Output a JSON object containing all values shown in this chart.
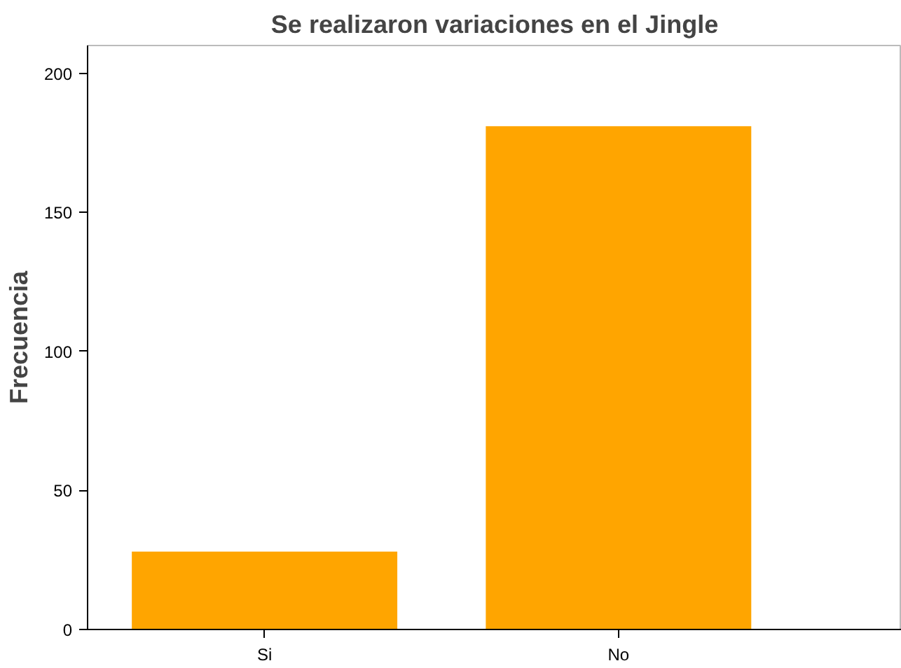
{
  "chart_data": {
    "type": "bar",
    "title": "Se realizaron variaciones en el Jingle",
    "ylabel": "Frecuencia",
    "categories": [
      "Si",
      "No"
    ],
    "values": [
      28,
      181
    ],
    "color": "#ffa500",
    "ylim": [
      0,
      210
    ],
    "yticks": [
      0,
      50,
      100,
      150,
      200
    ],
    "grid": false
  }
}
